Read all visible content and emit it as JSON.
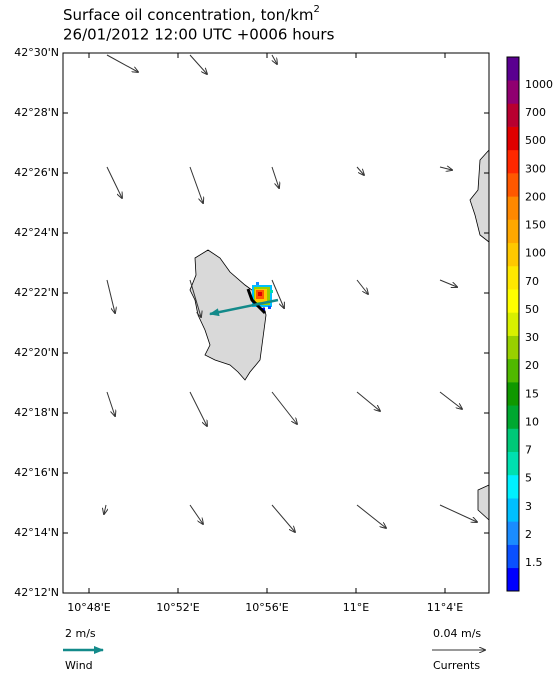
{
  "header": {
    "title": "Surface oil concentration, ton/km",
    "title_superscript": "2",
    "subtitle": "26/01/2012 12:00 UTC +0006 hours"
  },
  "map": {
    "lat_ticks": [
      "42°30'N",
      "42°28'N",
      "42°26'N",
      "42°24'N",
      "42°22'N",
      "42°20'N",
      "42°18'N",
      "42°16'N",
      "42°14'N",
      "42°12'N"
    ],
    "lon_ticks": [
      "10°48'E",
      "10°52'E",
      "10°56'E",
      "11°E",
      "11°4'E"
    ]
  },
  "colorbar": {
    "labels": [
      1000,
      700,
      500,
      300,
      200,
      150,
      100,
      70,
      50,
      30,
      20,
      15,
      10,
      7,
      5,
      3,
      2,
      1.5
    ],
    "colors": [
      "#0000ff",
      "#0a50ff",
      "#1a8cff",
      "#00c0ff",
      "#00f0ff",
      "#00e0b0",
      "#00c878",
      "#00a830",
      "#109800",
      "#50b800",
      "#98d000",
      "#d8f000",
      "#ffff00",
      "#ffe800",
      "#ffc800",
      "#ffa800",
      "#ff8800",
      "#ff5800",
      "#ff2800",
      "#e00000",
      "#b80030",
      "#900070",
      "#5a0090"
    ]
  },
  "legend": {
    "wind_scale": "2 m/s",
    "wind_label": "Wind",
    "current_scale": "0.04 m/s",
    "current_label": "Currents"
  }
}
